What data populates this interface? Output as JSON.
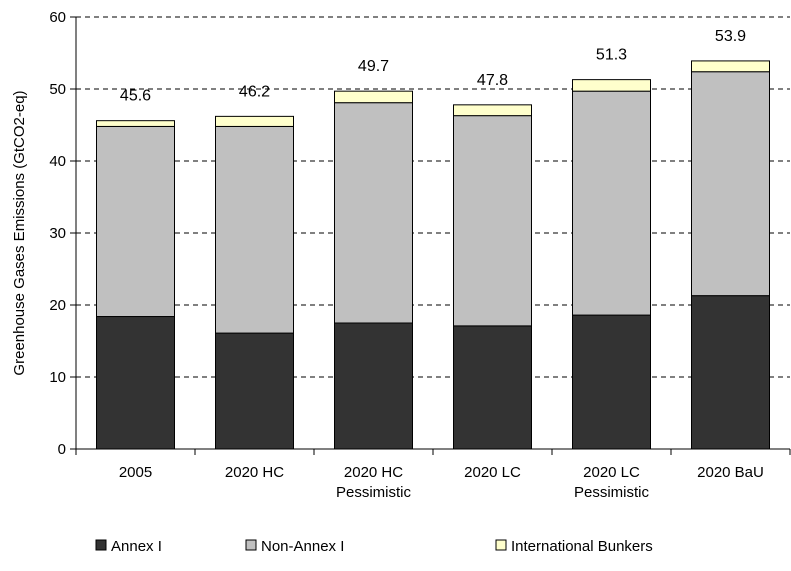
{
  "chart_data": {
    "type": "bar",
    "stacked": true,
    "title": "",
    "xlabel": "",
    "ylabel": "Greenhouse Gases Emissions (GtCO2-eq)",
    "ylim": [
      0,
      60
    ],
    "yticks": [
      0,
      10,
      20,
      30,
      40,
      50,
      60
    ],
    "grid": "horizontal dashed",
    "legend_position": "bottom",
    "categories": [
      [
        "2005"
      ],
      [
        "2020 HC"
      ],
      [
        "2020 HC",
        "Pessimistic"
      ],
      [
        "2020 LC"
      ],
      [
        "2020 LC",
        "Pessimistic"
      ],
      [
        "2020 BaU"
      ]
    ],
    "series": [
      {
        "name": "Annex I",
        "color": "#333333",
        "values": [
          18.4,
          16.1,
          17.5,
          17.1,
          18.6,
          21.3
        ]
      },
      {
        "name": "Non-Annex I",
        "color": "#c0c0c0",
        "values": [
          26.4,
          28.7,
          30.6,
          29.2,
          31.1,
          31.1
        ]
      },
      {
        "name": "International Bunkers",
        "color": "#ffffcc",
        "values": [
          0.8,
          1.4,
          1.6,
          1.5,
          1.6,
          1.5
        ]
      }
    ],
    "totals": [
      "45.6",
      "46.2",
      "49.7",
      "47.8",
      "51.3",
      "53.9"
    ]
  }
}
